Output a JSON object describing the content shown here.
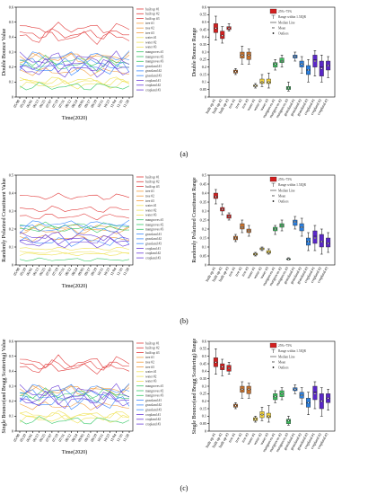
{
  "panel_labels": [
    "(a)",
    "(b)",
    "(c)"
  ],
  "classes": [
    "built up #1",
    "built up #2",
    "built up #3",
    "tree #1",
    "tree #2",
    "tree #3",
    "water #1",
    "water #2",
    "water #3",
    "mangroves #1",
    "mangroves #2",
    "mangroves #3",
    "grassland #1",
    "grassland #2",
    "grassland #3",
    "cropland #1",
    "cropland #2",
    "cropland #3"
  ],
  "class_colors": [
    "#e23b3b",
    "#e23b3b",
    "#e23b3b",
    "#f39c3d",
    "#f39c3d",
    "#f39c3d",
    "#f0e35a",
    "#f0e35a",
    "#f0e35a",
    "#3ac96a",
    "#3ac96a",
    "#3ac96a",
    "#3d8bff",
    "#3d8bff",
    "#3d8bff",
    "#6a3dd8",
    "#6a3dd8",
    "#6a3dd8"
  ],
  "box_colors": [
    "#d41f1f",
    "#d41f1f",
    "#d41f1f",
    "#c7722e",
    "#c7722e",
    "#c7722e",
    "#f4d43a",
    "#f4d43a",
    "#f4d43a",
    "#3bbf5e",
    "#3bbf5e",
    "#3bbf5e",
    "#2a7fe0",
    "#2a7fe0",
    "#2a7fe0",
    "#5a27c8",
    "#5a27c8",
    "#5a27c8"
  ],
  "dates": [
    "05/08",
    "05/20",
    "06/01",
    "06/13",
    "06/25",
    "07/07",
    "07/19",
    "07/31",
    "08/12",
    "08/24",
    "09/05",
    "09/17",
    "09/29",
    "10/11",
    "10/23",
    "11/04",
    "11/16",
    "11/28"
  ],
  "legend_box": {
    "range": "25%~75%",
    "whisker": "Range within 1.5IQR",
    "median": "Median Line",
    "mean": "Mean",
    "outliers": "Outliers"
  },
  "chart_data": [
    {
      "type": "line",
      "panel": "a-left",
      "xlabel": "Time(2020)",
      "ylabel": "Double Bounce Value",
      "ylim": [
        0,
        0.6
      ],
      "yticks": [
        0,
        0.1,
        0.2,
        0.3,
        0.4,
        0.5,
        0.6
      ],
      "series_base": [
        0.46,
        0.42,
        0.4,
        0.17,
        0.27,
        0.26,
        0.08,
        0.1,
        0.11,
        0.21,
        0.24,
        0.07,
        0.27,
        0.22,
        0.19,
        0.25,
        0.18,
        0.21
      ],
      "series_amp": [
        0.04,
        0.04,
        0.05,
        0.03,
        0.03,
        0.04,
        0.03,
        0.03,
        0.03,
        0.04,
        0.04,
        0.03,
        0.04,
        0.05,
        0.05,
        0.06,
        0.06,
        0.05
      ]
    },
    {
      "type": "box",
      "panel": "a-right",
      "ylabel": "Double Bounce Range",
      "ylim": [
        0,
        0.6
      ],
      "yticks": [
        0,
        0.05,
        0.1,
        0.15,
        0.2,
        0.25,
        0.3,
        0.35,
        0.4,
        0.45,
        0.5,
        0.55,
        0.6
      ],
      "boxes": [
        {
          "q1": 0.43,
          "q3": 0.49,
          "med": 0.46,
          "mean": 0.46,
          "lo": 0.38,
          "hi": 0.54
        },
        {
          "q1": 0.39,
          "q3": 0.44,
          "med": 0.41,
          "mean": 0.41,
          "lo": 0.36,
          "hi": 0.47
        },
        {
          "q1": 0.45,
          "q3": 0.47,
          "med": 0.46,
          "mean": 0.46,
          "lo": 0.44,
          "hi": 0.49
        },
        {
          "q1": 0.16,
          "q3": 0.18,
          "med": 0.17,
          "mean": 0.17,
          "lo": 0.15,
          "hi": 0.19
        },
        {
          "q1": 0.26,
          "q3": 0.3,
          "med": 0.28,
          "mean": 0.28,
          "lo": 0.22,
          "hi": 0.34
        },
        {
          "q1": 0.25,
          "q3": 0.3,
          "med": 0.28,
          "mean": 0.28,
          "lo": 0.22,
          "hi": 0.32
        },
        {
          "q1": 0.07,
          "q3": 0.08,
          "med": 0.075,
          "mean": 0.075,
          "lo": 0.06,
          "hi": 0.09
        },
        {
          "q1": 0.09,
          "q3": 0.12,
          "med": 0.1,
          "mean": 0.1,
          "lo": 0.07,
          "hi": 0.15
        },
        {
          "q1": 0.09,
          "q3": 0.12,
          "med": 0.1,
          "mean": 0.1,
          "lo": 0.06,
          "hi": 0.16
        },
        {
          "q1": 0.2,
          "q3": 0.23,
          "med": 0.22,
          "mean": 0.22,
          "lo": 0.18,
          "hi": 0.25
        },
        {
          "q1": 0.23,
          "q3": 0.26,
          "med": 0.24,
          "mean": 0.24,
          "lo": 0.2,
          "hi": 0.28
        },
        {
          "q1": 0.05,
          "q3": 0.07,
          "med": 0.06,
          "mean": 0.06,
          "lo": 0.04,
          "hi": 0.1
        },
        {
          "q1": 0.26,
          "q3": 0.28,
          "med": 0.27,
          "mean": 0.27,
          "lo": 0.24,
          "hi": 0.3
        },
        {
          "q1": 0.2,
          "q3": 0.24,
          "med": 0.22,
          "mean": 0.22,
          "lo": 0.16,
          "hi": 0.27
        },
        {
          "q1": 0.15,
          "q3": 0.21,
          "med": 0.18,
          "mean": 0.18,
          "lo": 0.1,
          "hi": 0.25
        },
        {
          "q1": 0.2,
          "q3": 0.28,
          "med": 0.25,
          "mean": 0.24,
          "lo": 0.14,
          "hi": 0.31
        },
        {
          "q1": 0.14,
          "q3": 0.24,
          "med": 0.2,
          "mean": 0.19,
          "lo": 0.1,
          "hi": 0.28
        },
        {
          "q1": 0.18,
          "q3": 0.24,
          "med": 0.21,
          "mean": 0.21,
          "lo": 0.13,
          "hi": 0.27
        }
      ]
    },
    {
      "type": "line",
      "panel": "b-left",
      "xlabel": "Time(2020)",
      "ylabel": "Randomly Polarized Constituent Value",
      "ylim": [
        0,
        0.5
      ],
      "yticks": [
        0,
        0.1,
        0.2,
        0.3,
        0.4,
        0.5
      ],
      "series_base": [
        0.38,
        0.31,
        0.27,
        0.15,
        0.21,
        0.19,
        0.06,
        0.09,
        0.07,
        0.2,
        0.22,
        0.03,
        0.23,
        0.2,
        0.13,
        0.16,
        0.12,
        0.14
      ],
      "series_amp": [
        0.02,
        0.02,
        0.02,
        0.02,
        0.02,
        0.02,
        0.01,
        0.01,
        0.01,
        0.02,
        0.02,
        0.01,
        0.02,
        0.03,
        0.03,
        0.03,
        0.03,
        0.03
      ]
    },
    {
      "type": "box",
      "panel": "b-right",
      "ylabel": "Randomly Polarized Constituent Range",
      "ylim": [
        0,
        0.5
      ],
      "yticks": [
        0,
        0.05,
        0.1,
        0.15,
        0.2,
        0.25,
        0.3,
        0.35,
        0.4,
        0.45,
        0.5
      ],
      "boxes": [
        {
          "q1": 0.37,
          "q3": 0.4,
          "med": 0.38,
          "mean": 0.38,
          "lo": 0.34,
          "hi": 0.42
        },
        {
          "q1": 0.3,
          "q3": 0.32,
          "med": 0.31,
          "mean": 0.31,
          "lo": 0.28,
          "hi": 0.34
        },
        {
          "q1": 0.26,
          "q3": 0.28,
          "med": 0.27,
          "mean": 0.27,
          "lo": 0.25,
          "hi": 0.29
        },
        {
          "q1": 0.14,
          "q3": 0.16,
          "med": 0.15,
          "mean": 0.15,
          "lo": 0.13,
          "hi": 0.17
        },
        {
          "q1": 0.2,
          "q3": 0.23,
          "med": 0.21,
          "mean": 0.21,
          "lo": 0.18,
          "hi": 0.25
        },
        {
          "q1": 0.18,
          "q3": 0.2,
          "med": 0.19,
          "mean": 0.19,
          "lo": 0.16,
          "hi": 0.22
        },
        {
          "q1": 0.055,
          "q3": 0.065,
          "med": 0.06,
          "mean": 0.06,
          "lo": 0.05,
          "hi": 0.07
        },
        {
          "q1": 0.085,
          "q3": 0.095,
          "med": 0.09,
          "mean": 0.09,
          "lo": 0.08,
          "hi": 0.1
        },
        {
          "q1": 0.065,
          "q3": 0.08,
          "med": 0.07,
          "mean": 0.07,
          "lo": 0.06,
          "hi": 0.09
        },
        {
          "q1": 0.19,
          "q3": 0.21,
          "med": 0.2,
          "mean": 0.2,
          "lo": 0.17,
          "hi": 0.22
        },
        {
          "q1": 0.21,
          "q3": 0.23,
          "med": 0.22,
          "mean": 0.22,
          "lo": 0.19,
          "hi": 0.25
        },
        {
          "q1": 0.03,
          "q3": 0.035,
          "med": 0.032,
          "mean": 0.032,
          "lo": 0.028,
          "hi": 0.04
        },
        {
          "q1": 0.22,
          "q3": 0.25,
          "med": 0.24,
          "mean": 0.24,
          "lo": 0.2,
          "hi": 0.27
        },
        {
          "q1": 0.19,
          "q3": 0.23,
          "med": 0.21,
          "mean": 0.21,
          "lo": 0.16,
          "hi": 0.26
        },
        {
          "q1": 0.11,
          "q3": 0.15,
          "med": 0.13,
          "mean": 0.13,
          "lo": 0.08,
          "hi": 0.18
        },
        {
          "q1": 0.12,
          "q3": 0.19,
          "med": 0.16,
          "mean": 0.15,
          "lo": 0.08,
          "hi": 0.22
        },
        {
          "q1": 0.1,
          "q3": 0.17,
          "med": 0.13,
          "mean": 0.13,
          "lo": 0.06,
          "hi": 0.2
        },
        {
          "q1": 0.1,
          "q3": 0.15,
          "med": 0.12,
          "mean": 0.12,
          "lo": 0.07,
          "hi": 0.18
        }
      ]
    },
    {
      "type": "line",
      "panel": "c-left",
      "xlabel": "Time(2020)",
      "ylabel": "Single Bounce(and Bragg Scattering) Value",
      "ylim": [
        0,
        0.6
      ],
      "yticks": [
        0,
        0.1,
        0.2,
        0.3,
        0.4,
        0.5,
        0.6
      ],
      "series_base": [
        0.46,
        0.44,
        0.42,
        0.17,
        0.28,
        0.27,
        0.08,
        0.11,
        0.1,
        0.23,
        0.25,
        0.07,
        0.28,
        0.24,
        0.19,
        0.26,
        0.2,
        0.22
      ],
      "series_amp": [
        0.05,
        0.04,
        0.04,
        0.03,
        0.03,
        0.04,
        0.03,
        0.03,
        0.03,
        0.04,
        0.04,
        0.03,
        0.04,
        0.05,
        0.05,
        0.06,
        0.06,
        0.05
      ]
    },
    {
      "type": "box",
      "panel": "c-right",
      "ylabel": "Single Bounce(and Bragg Scattering) Range",
      "ylim": [
        0,
        0.6
      ],
      "yticks": [
        0,
        0.05,
        0.1,
        0.15,
        0.2,
        0.25,
        0.3,
        0.35,
        0.4,
        0.45,
        0.5,
        0.55,
        0.6
      ],
      "boxes": [
        {
          "q1": 0.43,
          "q3": 0.49,
          "med": 0.46,
          "mean": 0.46,
          "lo": 0.38,
          "hi": 0.55
        },
        {
          "q1": 0.41,
          "q3": 0.45,
          "med": 0.43,
          "mean": 0.43,
          "lo": 0.37,
          "hi": 0.48
        },
        {
          "q1": 0.4,
          "q3": 0.44,
          "med": 0.42,
          "mean": 0.42,
          "lo": 0.38,
          "hi": 0.46
        },
        {
          "q1": 0.16,
          "q3": 0.18,
          "med": 0.17,
          "mean": 0.17,
          "lo": 0.15,
          "hi": 0.19
        },
        {
          "q1": 0.26,
          "q3": 0.3,
          "med": 0.28,
          "mean": 0.28,
          "lo": 0.22,
          "hi": 0.33
        },
        {
          "q1": 0.25,
          "q3": 0.3,
          "med": 0.28,
          "mean": 0.28,
          "lo": 0.22,
          "hi": 0.32
        },
        {
          "q1": 0.07,
          "q3": 0.09,
          "med": 0.08,
          "mean": 0.08,
          "lo": 0.06,
          "hi": 0.1
        },
        {
          "q1": 0.09,
          "q3": 0.13,
          "med": 0.11,
          "mean": 0.11,
          "lo": 0.07,
          "hi": 0.16
        },
        {
          "q1": 0.09,
          "q3": 0.12,
          "med": 0.1,
          "mean": 0.1,
          "lo": 0.06,
          "hi": 0.17
        },
        {
          "q1": 0.21,
          "q3": 0.25,
          "med": 0.23,
          "mean": 0.23,
          "lo": 0.19,
          "hi": 0.27
        },
        {
          "q1": 0.23,
          "q3": 0.27,
          "med": 0.25,
          "mean": 0.25,
          "lo": 0.21,
          "hi": 0.29
        },
        {
          "q1": 0.05,
          "q3": 0.08,
          "med": 0.07,
          "mean": 0.07,
          "lo": 0.04,
          "hi": 0.1
        },
        {
          "q1": 0.27,
          "q3": 0.29,
          "med": 0.28,
          "mean": 0.28,
          "lo": 0.25,
          "hi": 0.31
        },
        {
          "q1": 0.22,
          "q3": 0.26,
          "med": 0.24,
          "mean": 0.24,
          "lo": 0.18,
          "hi": 0.29
        },
        {
          "q1": 0.16,
          "q3": 0.22,
          "med": 0.19,
          "mean": 0.19,
          "lo": 0.11,
          "hi": 0.26
        },
        {
          "q1": 0.21,
          "q3": 0.3,
          "med": 0.26,
          "mean": 0.25,
          "lo": 0.15,
          "hi": 0.33
        },
        {
          "q1": 0.15,
          "q3": 0.25,
          "med": 0.2,
          "mean": 0.2,
          "lo": 0.1,
          "hi": 0.29
        },
        {
          "q1": 0.19,
          "q3": 0.25,
          "med": 0.22,
          "mean": 0.22,
          "lo": 0.14,
          "hi": 0.28
        }
      ]
    }
  ]
}
